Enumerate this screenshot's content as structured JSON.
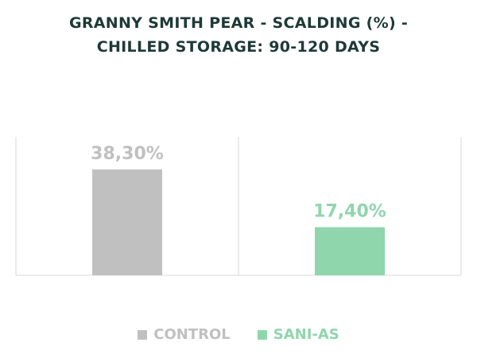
{
  "chart_data": {
    "type": "bar",
    "title_lines": [
      "GRANNY SMITH PEAR - SCALDING (%) -",
      "CHILLED STORAGE: 90-120 DAYS"
    ],
    "categories": [
      "CONTROL",
      "SANI-AS"
    ],
    "values": [
      38.3,
      17.4
    ],
    "value_labels": [
      "38,30%",
      "17,40%"
    ],
    "ylim": [
      0,
      38.3
    ],
    "grid": false,
    "legend_position": "bottom",
    "series": [
      {
        "name": "CONTROL",
        "color": "#c0c0c0",
        "label_color": "#c0c0c0"
      },
      {
        "name": "SANI-AS",
        "color": "#8fd6ac",
        "label_color": "#8fd6ac"
      }
    ]
  }
}
